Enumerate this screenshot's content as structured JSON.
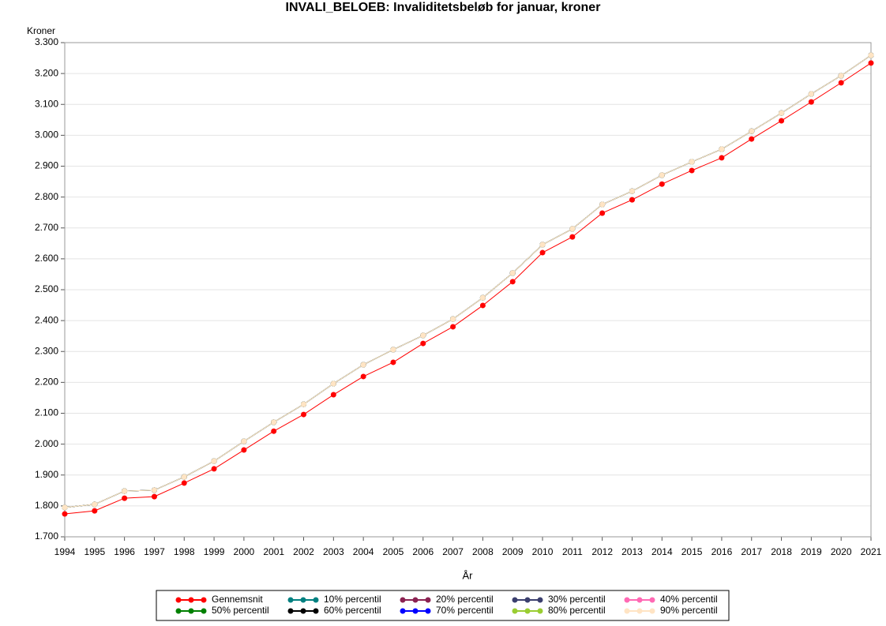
{
  "chart_data": {
    "type": "line",
    "title": "INVALI_BELOEB: Invaliditetsbeløb for januar, kroner",
    "y_label": "Kroner",
    "x_label": "År",
    "x": [
      1994,
      1995,
      1996,
      1997,
      1998,
      1999,
      2000,
      2001,
      2002,
      2003,
      2004,
      2005,
      2006,
      2007,
      2008,
      2009,
      2010,
      2011,
      2012,
      2013,
      2014,
      2015,
      2016,
      2017,
      2018,
      2019,
      2020,
      2021
    ],
    "xlim": [
      1994,
      2021
    ],
    "xticks": [
      1994,
      1995,
      1996,
      1997,
      1998,
      1999,
      2000,
      2001,
      2002,
      2003,
      2004,
      2005,
      2006,
      2007,
      2008,
      2009,
      2010,
      2011,
      2012,
      2013,
      2014,
      2015,
      2016,
      2017,
      2018,
      2019,
      2020,
      2021
    ],
    "ylim": [
      1700,
      3300
    ],
    "yticks": [
      {
        "value": 1700,
        "label": "1.700"
      },
      {
        "value": 1800,
        "label": "1.800"
      },
      {
        "value": 1900,
        "label": "1.900"
      },
      {
        "value": 2000,
        "label": "2.000"
      },
      {
        "value": 2100,
        "label": "2.100"
      },
      {
        "value": 2200,
        "label": "2.200"
      },
      {
        "value": 2300,
        "label": "2.300"
      },
      {
        "value": 2400,
        "label": "2.400"
      },
      {
        "value": 2500,
        "label": "2.500"
      },
      {
        "value": 2600,
        "label": "2.600"
      },
      {
        "value": 2700,
        "label": "2.700"
      },
      {
        "value": 2800,
        "label": "2.800"
      },
      {
        "value": 2900,
        "label": "2.900"
      },
      {
        "value": 3000,
        "label": "3.000"
      },
      {
        "value": 3100,
        "label": "3.100"
      },
      {
        "value": 3200,
        "label": "3.200"
      },
      {
        "value": 3300,
        "label": "3.300"
      }
    ],
    "grid": true,
    "legend": "bottom",
    "series": [
      {
        "name": "Gennemsnit",
        "color": "#ff0000",
        "values": [
          1774,
          1784,
          1825,
          1830,
          1874,
          1920,
          1981,
          2042,
          2096,
          2160,
          2219,
          2265,
          2326,
          2380,
          2449,
          2526,
          2620,
          2671,
          2748,
          2791,
          2842,
          2886,
          2927,
          2988,
          3047,
          3108,
          3170,
          3234
        ]
      },
      {
        "name": "10% percentil",
        "color": "#008080",
        "values": [
          1795,
          1805,
          1848,
          1851,
          1894,
          1945,
          2009,
          2071,
          2129,
          2196,
          2257,
          2306,
          2352,
          2405,
          2474,
          2554,
          2646,
          2697,
          2776,
          2819,
          2871,
          2914,
          2955,
          3013,
          3072,
          3134,
          3193,
          3259
        ]
      },
      {
        "name": "20% percentil",
        "color": "#8b2252",
        "values": [
          1795,
          1805,
          1848,
          1851,
          1894,
          1945,
          2009,
          2071,
          2129,
          2196,
          2257,
          2306,
          2352,
          2405,
          2474,
          2554,
          2646,
          2697,
          2776,
          2819,
          2871,
          2914,
          2955,
          3013,
          3072,
          3134,
          3193,
          3259
        ]
      },
      {
        "name": "30% percentil",
        "color": "#3b3f6e",
        "values": [
          1795,
          1805,
          1848,
          1851,
          1894,
          1945,
          2009,
          2071,
          2129,
          2196,
          2257,
          2306,
          2352,
          2405,
          2474,
          2554,
          2646,
          2697,
          2776,
          2819,
          2871,
          2914,
          2955,
          3013,
          3072,
          3134,
          3193,
          3259
        ]
      },
      {
        "name": "40% percentil",
        "color": "#ff69b4",
        "values": [
          1795,
          1805,
          1848,
          1851,
          1894,
          1945,
          2009,
          2071,
          2129,
          2196,
          2257,
          2306,
          2352,
          2405,
          2474,
          2554,
          2646,
          2697,
          2776,
          2819,
          2871,
          2914,
          2955,
          3013,
          3072,
          3134,
          3193,
          3259
        ]
      },
      {
        "name": "50% percentil",
        "color": "#008000",
        "values": [
          1795,
          1805,
          1848,
          1851,
          1894,
          1945,
          2009,
          2071,
          2129,
          2196,
          2257,
          2306,
          2352,
          2405,
          2474,
          2554,
          2646,
          2697,
          2776,
          2819,
          2871,
          2914,
          2955,
          3013,
          3072,
          3134,
          3193,
          3259
        ]
      },
      {
        "name": "60% percentil",
        "color": "#000000",
        "values": [
          1795,
          1805,
          1848,
          1851,
          1894,
          1945,
          2009,
          2071,
          2129,
          2196,
          2257,
          2306,
          2352,
          2405,
          2474,
          2554,
          2646,
          2697,
          2776,
          2819,
          2871,
          2914,
          2955,
          3013,
          3072,
          3134,
          3193,
          3259
        ]
      },
      {
        "name": "70% percentil",
        "color": "#0000ff",
        "values": [
          1795,
          1805,
          1848,
          1851,
          1894,
          1945,
          2009,
          2071,
          2129,
          2196,
          2257,
          2306,
          2352,
          2405,
          2474,
          2554,
          2646,
          2697,
          2776,
          2819,
          2871,
          2914,
          2955,
          3013,
          3072,
          3134,
          3193,
          3259
        ]
      },
      {
        "name": "80% percentil",
        "color": "#9acd32",
        "values": [
          1795,
          1805,
          1848,
          1851,
          1894,
          1945,
          2009,
          2071,
          2129,
          2196,
          2257,
          2306,
          2352,
          2405,
          2474,
          2554,
          2646,
          2697,
          2776,
          2819,
          2871,
          2914,
          2955,
          3013,
          3072,
          3134,
          3193,
          3259
        ]
      },
      {
        "name": "90% percentil",
        "color": "#ffe4c4",
        "values": [
          1795,
          1805,
          1848,
          1851,
          1894,
          1945,
          2009,
          2071,
          2129,
          2196,
          2257,
          2306,
          2352,
          2405,
          2474,
          2554,
          2646,
          2697,
          2776,
          2819,
          2871,
          2914,
          2955,
          3013,
          3072,
          3134,
          3193,
          3259
        ]
      }
    ]
  }
}
